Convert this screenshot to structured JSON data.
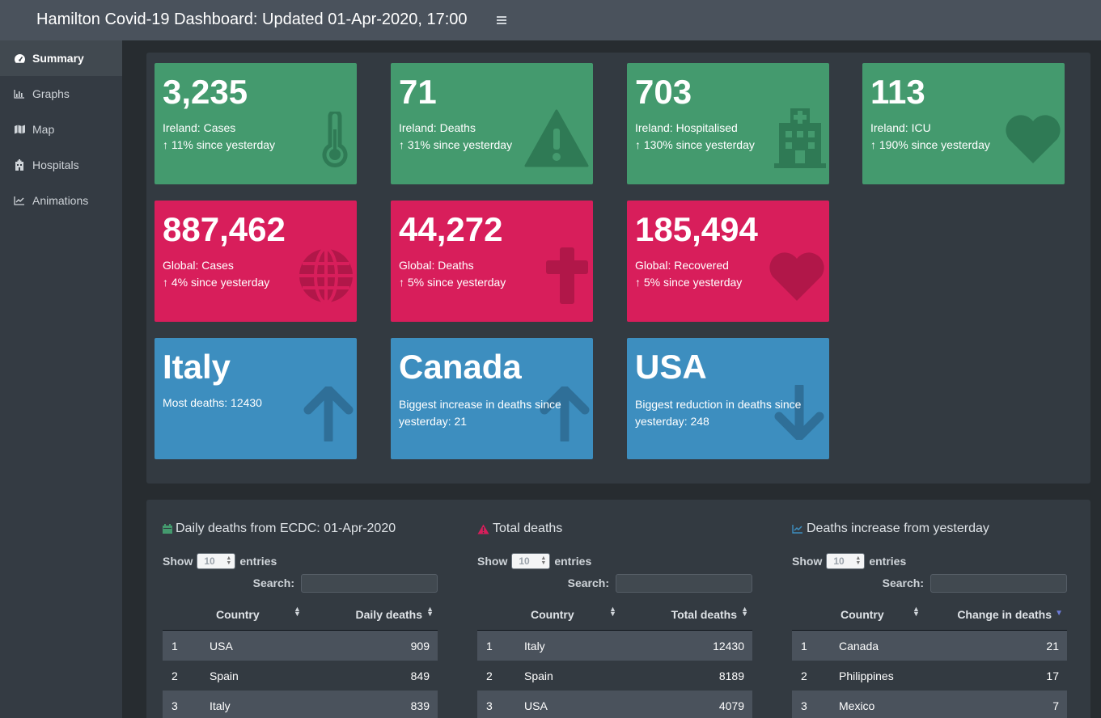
{
  "header": {
    "title": "Hamilton Covid-19 Dashboard: Updated 01-Apr-2020, 17:00"
  },
  "sidebar": {
    "items": [
      {
        "label": "Summary",
        "icon": "tachometer-icon",
        "active": true
      },
      {
        "label": "Graphs",
        "icon": "bar-chart-icon"
      },
      {
        "label": "Map",
        "icon": "map-icon"
      },
      {
        "label": "Hospitals",
        "icon": "hospital-icon"
      },
      {
        "label": "Animations",
        "icon": "line-chart-icon"
      }
    ]
  },
  "value_boxes": {
    "ireland_cases": {
      "value": "3,235",
      "label": "Ireland: Cases",
      "change": "11% since yesterday",
      "arrow": "↑",
      "icon": "thermometer-icon",
      "color": "#449a6e"
    },
    "ireland_deaths": {
      "value": "71",
      "label": "Ireland: Deaths",
      "change": "31% since yesterday",
      "arrow": "↑",
      "icon": "warning-icon",
      "color": "#449a6e"
    },
    "ireland_hosp": {
      "value": "703",
      "label": "Ireland: Hospitalised",
      "change": "130% since yesterday",
      "arrow": "↑",
      "icon": "hospital-icon",
      "color": "#449a6e"
    },
    "ireland_icu": {
      "value": "113",
      "label": "Ireland: ICU",
      "change": "190% since yesterday",
      "arrow": "↑",
      "icon": "heart-icon",
      "color": "#449a6e"
    },
    "global_cases": {
      "value": "887,462",
      "label": "Global: Cases",
      "change": "4% since yesterday",
      "arrow": "↑",
      "icon": "globe-icon",
      "color": "#d81e5b"
    },
    "global_deaths": {
      "value": "44,272",
      "label": "Global: Deaths",
      "change": "5% since yesterday",
      "arrow": "↑",
      "icon": "cross-icon",
      "color": "#d81e5b"
    },
    "global_recovered": {
      "value": "185,494",
      "label": "Global: Recovered",
      "change": "5% since yesterday",
      "arrow": "↑",
      "icon": "heart-icon",
      "color": "#d81e5b"
    },
    "most_deaths": {
      "value": "Italy",
      "label": "Most deaths: 12430",
      "icon": "arrow-up-icon",
      "color": "#3d8ebf"
    },
    "biggest_increase": {
      "value": "Canada",
      "label": "Biggest increase in deaths since yesterday: 21",
      "icon": "arrow-up-icon",
      "color": "#3d8ebf"
    },
    "biggest_reduction": {
      "value": "USA",
      "label": "Biggest reduction in deaths since yesterday: 248",
      "icon": "arrow-down-icon",
      "color": "#3d8ebf"
    }
  },
  "tables": [
    {
      "title": "Daily deaths from ECDC: 01-Apr-2020",
      "title_icon": "calendar-icon",
      "show_label": "Show",
      "entries_value": "10",
      "entries_label": "entries",
      "search_label": "Search:",
      "columns": [
        "Country",
        "Daily deaths"
      ],
      "rows": [
        {
          "idx": "1",
          "country": "USA",
          "value": "909"
        },
        {
          "idx": "2",
          "country": "Spain",
          "value": "849"
        },
        {
          "idx": "3",
          "country": "Italy",
          "value": "839"
        }
      ]
    },
    {
      "title": "Total deaths",
      "title_icon": "warning-icon",
      "show_label": "Show",
      "entries_value": "10",
      "entries_label": "entries",
      "search_label": "Search:",
      "columns": [
        "Country",
        "Total deaths"
      ],
      "rows": [
        {
          "idx": "1",
          "country": "Italy",
          "value": "12430"
        },
        {
          "idx": "2",
          "country": "Spain",
          "value": "8189"
        },
        {
          "idx": "3",
          "country": "USA",
          "value": "4079"
        }
      ]
    },
    {
      "title": "Deaths increase from yesterday",
      "title_icon": "line-chart-icon",
      "show_label": "Show",
      "entries_value": "10",
      "entries_label": "entries",
      "search_label": "Search:",
      "columns": [
        "Country",
        "Change in deaths"
      ],
      "rows": [
        {
          "idx": "1",
          "country": "Canada",
          "value": "21"
        },
        {
          "idx": "2",
          "country": "Philippines",
          "value": "17"
        },
        {
          "idx": "3",
          "country": "Mexico",
          "value": "7"
        }
      ]
    }
  ]
}
